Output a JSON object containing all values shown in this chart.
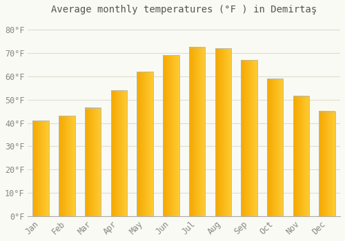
{
  "title": "Average monthly temperatures (°F ) in Demirtaş",
  "months": [
    "Jan",
    "Feb",
    "Mar",
    "Apr",
    "May",
    "Jun",
    "Jul",
    "Aug",
    "Sep",
    "Oct",
    "Nov",
    "Dec"
  ],
  "values": [
    41,
    43,
    46.5,
    54,
    62,
    69,
    72.5,
    72,
    67,
    59,
    51.5,
    45
  ],
  "bar_color_left": "#F5A800",
  "bar_color_right": "#FFCC33",
  "bar_edge_color": "#BBBBAA",
  "background_color": "#FAFAF5",
  "yticks": [
    0,
    10,
    20,
    30,
    40,
    50,
    60,
    70,
    80
  ],
  "ytick_labels": [
    "0°F",
    "10°F",
    "20°F",
    "30°F",
    "40°F",
    "50°F",
    "60°F",
    "70°F",
    "80°F"
  ],
  "ylim": [
    0,
    85
  ],
  "grid_color": "#DDDDCC",
  "title_fontsize": 10,
  "tick_fontsize": 8.5,
  "font_family": "monospace",
  "tick_color": "#888880"
}
